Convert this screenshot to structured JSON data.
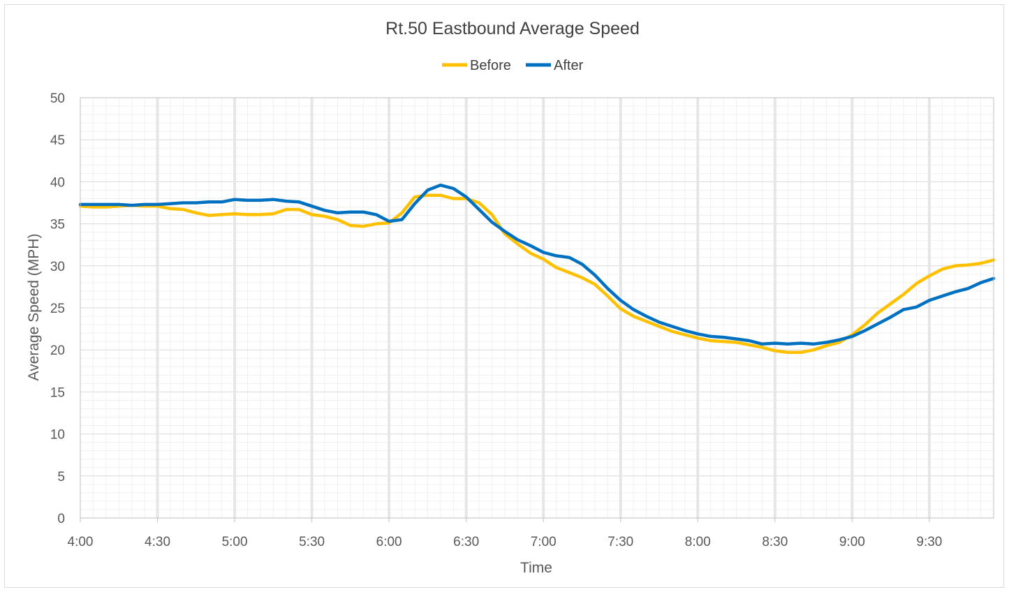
{
  "chart_data": {
    "type": "line",
    "title": "Rt.50 Eastbound Average Speed",
    "xlabel": "Time",
    "ylabel": "Average Speed (MPH)",
    "ylim": [
      0,
      50
    ],
    "yticks": [
      "0",
      "5",
      "10",
      "15",
      "20",
      "25",
      "30",
      "35",
      "40",
      "45",
      "50"
    ],
    "xtick_labels": [
      "4:00",
      "4:30",
      "5:00",
      "5:30",
      "6:00",
      "6:30",
      "7:00",
      "7:30",
      "8:00",
      "8:30",
      "9:00",
      "9:30"
    ],
    "x_start": "4:00",
    "x_interval_minutes": 5,
    "legend_position": "top",
    "grid": true,
    "series": [
      {
        "name": "Before",
        "color": "#FFC000",
        "values": [
          37.1,
          37.0,
          37.0,
          37.1,
          37.2,
          37.1,
          37.1,
          36.8,
          36.7,
          36.3,
          36.0,
          36.1,
          36.2,
          36.1,
          36.1,
          36.2,
          36.7,
          36.7,
          36.1,
          35.9,
          35.5,
          34.8,
          34.7,
          35.0,
          35.1,
          36.3,
          38.2,
          38.4,
          38.4,
          38.0,
          38.0,
          37.5,
          36.1,
          33.8,
          32.6,
          31.5,
          30.8,
          29.8,
          29.2,
          28.6,
          27.8,
          26.4,
          24.9,
          24.0,
          23.4,
          22.8,
          22.2,
          21.8,
          21.4,
          21.1,
          21.0,
          20.9,
          20.6,
          20.3,
          19.9,
          19.7,
          19.7,
          20.0,
          20.5,
          20.9,
          21.8,
          23.0,
          24.4,
          25.5,
          26.6,
          27.9,
          28.8,
          29.6,
          30.0,
          30.1,
          30.3,
          30.7
        ]
      },
      {
        "name": "After",
        "color": "#0070C0",
        "values": [
          37.3,
          37.3,
          37.3,
          37.3,
          37.2,
          37.3,
          37.3,
          37.4,
          37.5,
          37.5,
          37.6,
          37.6,
          37.9,
          37.8,
          37.8,
          37.9,
          37.7,
          37.6,
          37.1,
          36.6,
          36.3,
          36.4,
          36.4,
          36.1,
          35.3,
          35.5,
          37.4,
          39.0,
          39.6,
          39.2,
          38.2,
          36.7,
          35.2,
          34.1,
          33.1,
          32.4,
          31.6,
          31.2,
          31.0,
          30.2,
          28.9,
          27.3,
          25.9,
          24.8,
          24.0,
          23.3,
          22.8,
          22.3,
          21.9,
          21.6,
          21.5,
          21.3,
          21.1,
          20.7,
          20.8,
          20.7,
          20.8,
          20.7,
          20.9,
          21.2,
          21.6,
          22.3,
          23.1,
          23.9,
          24.8,
          25.1,
          25.9,
          26.4,
          26.9,
          27.3,
          28.0,
          28.5
        ]
      }
    ]
  }
}
